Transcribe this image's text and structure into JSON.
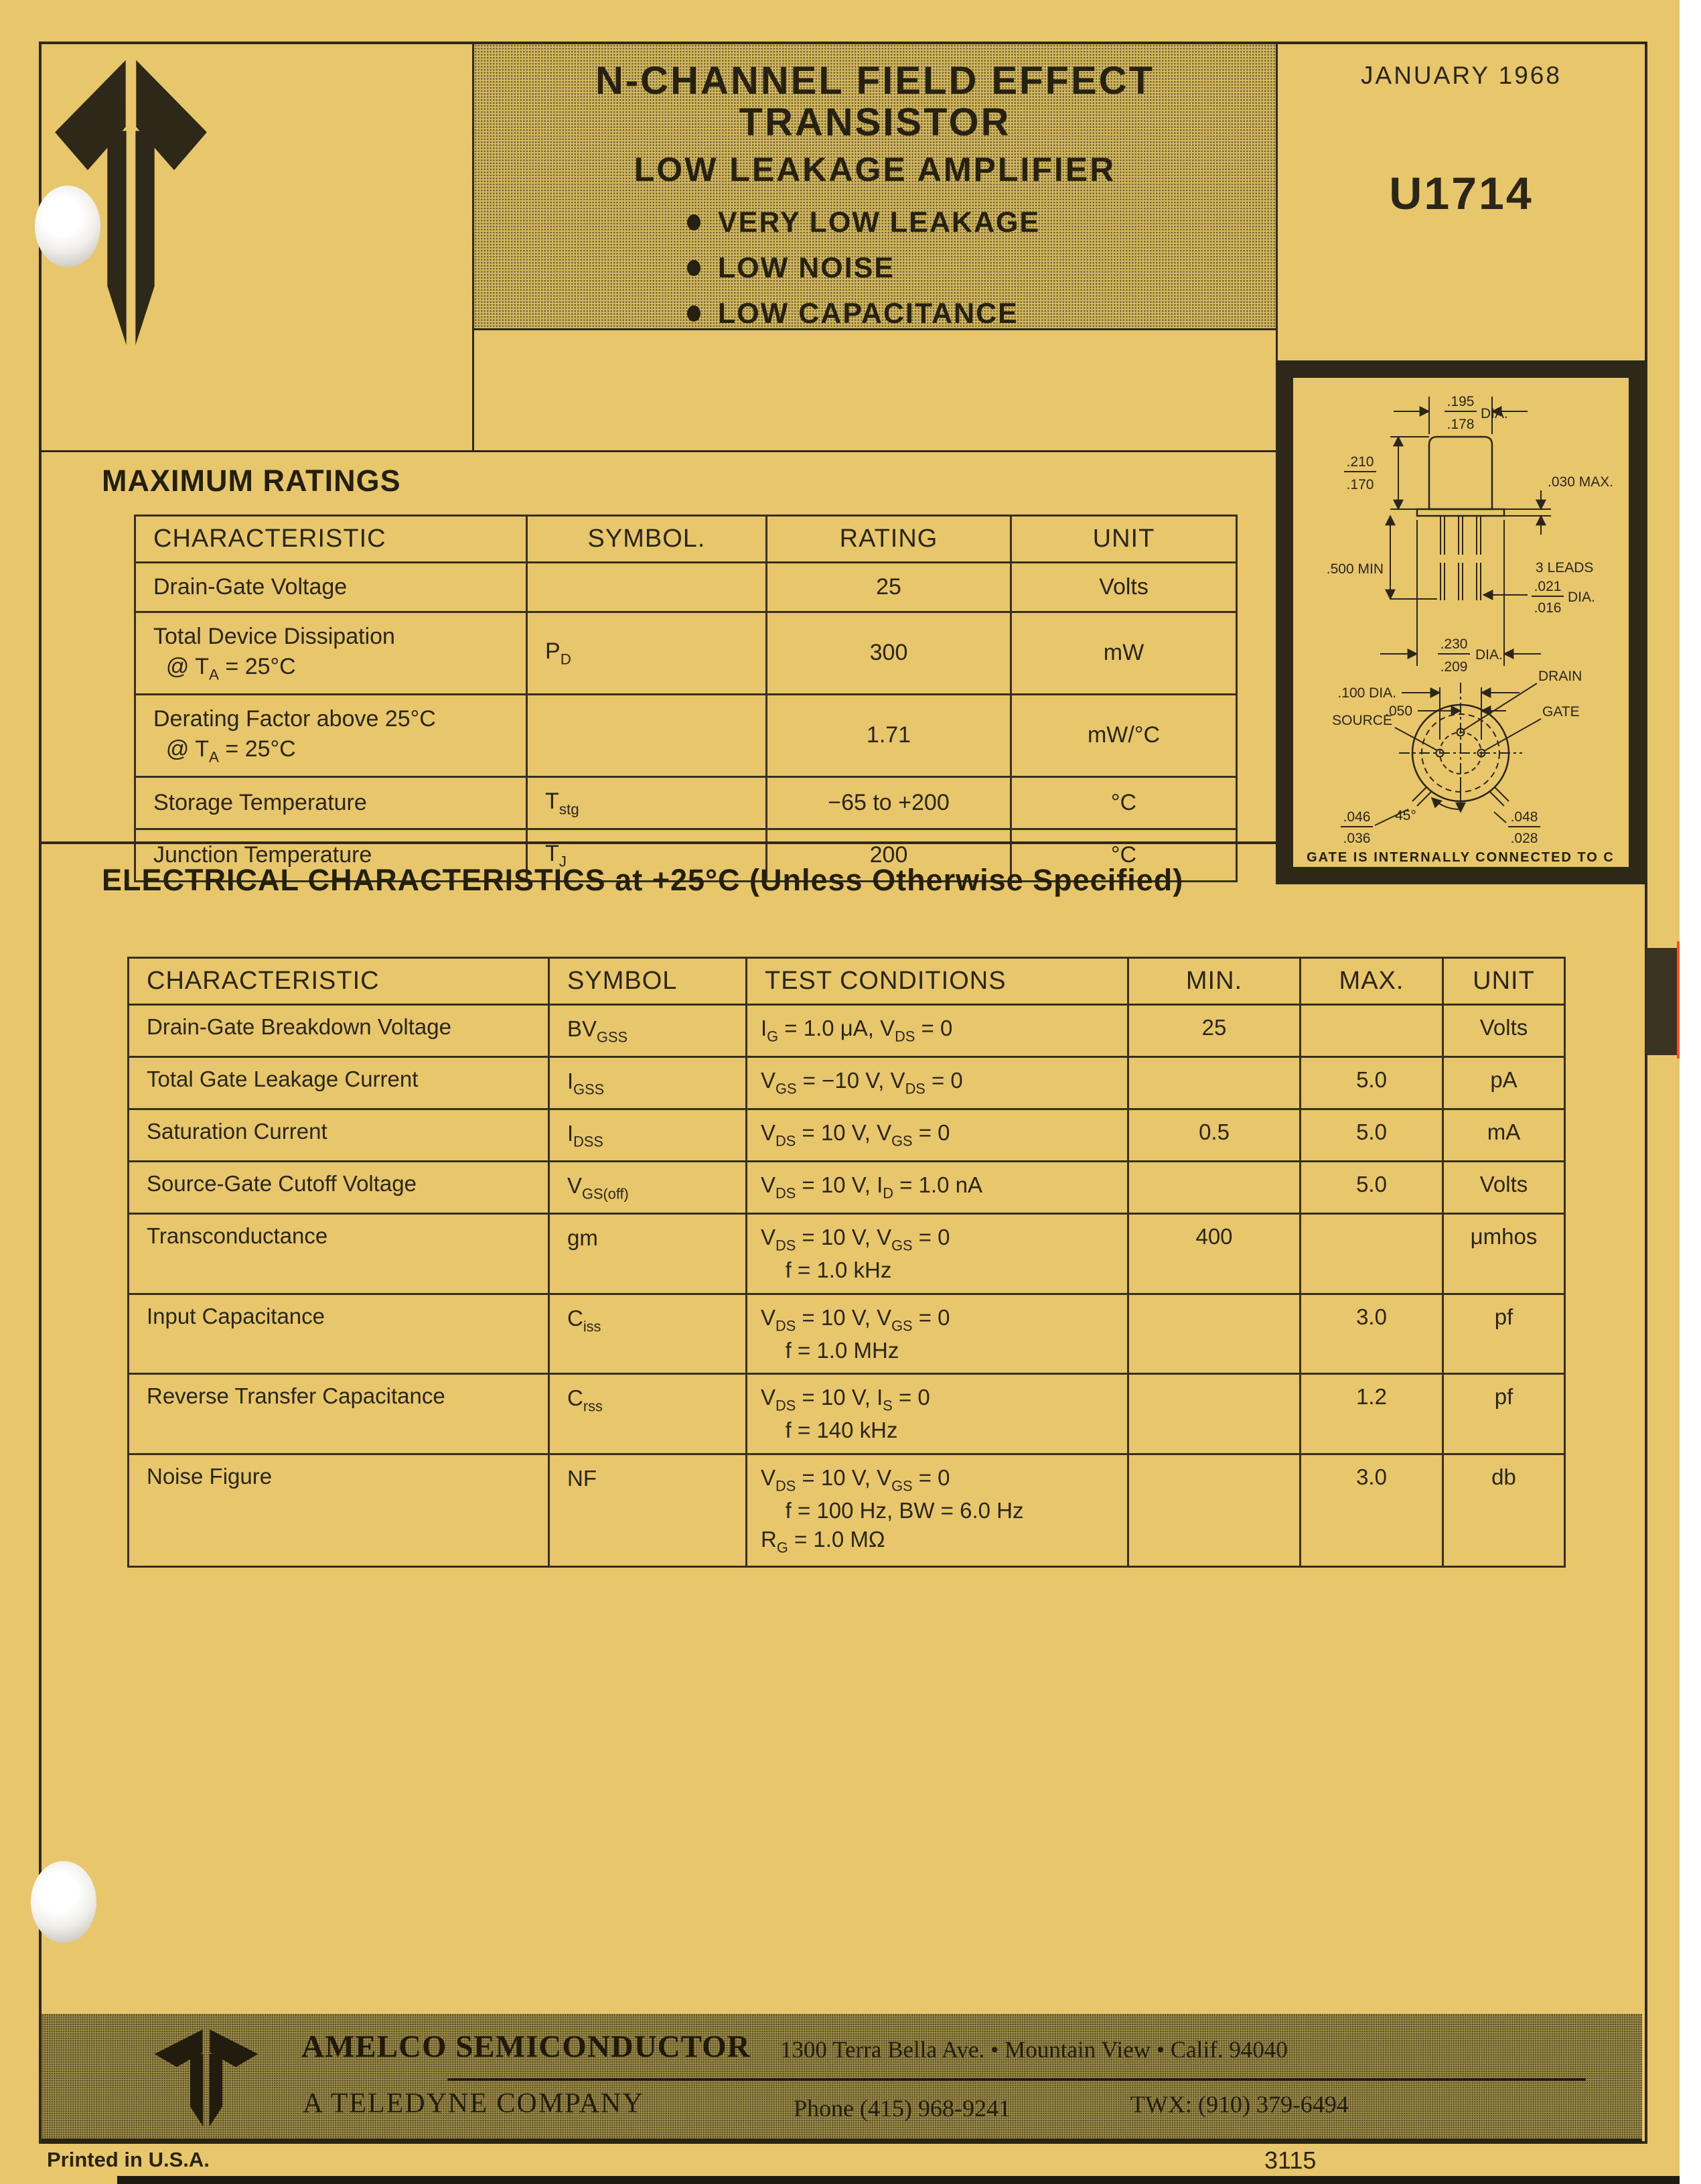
{
  "page": {
    "date": "JANUARY 1968",
    "part_number": "U1714",
    "printed_note": "Printed in U.S.A.",
    "doc_number": "3115"
  },
  "header": {
    "title_line1": "N-CHANNEL FIELD EFFECT",
    "title_line2": "TRANSISTOR",
    "subtitle": "LOW LEAKAGE AMPLIFIER",
    "bullets": [
      "VERY LOW LEAKAGE",
      "LOW NOISE",
      "LOW CAPACITANCE"
    ]
  },
  "max_ratings": {
    "heading": "MAXIMUM RATINGS",
    "columns": [
      "CHARACTERISTIC",
      "SYMBOL.",
      "RATING",
      "UNIT"
    ],
    "rows": [
      {
        "characteristic": [
          [
            {
              "t": "Drain-Gate Voltage"
            }
          ]
        ],
        "symbol": [],
        "rating": "25",
        "unit": "Volts"
      },
      {
        "characteristic": [
          [
            {
              "t": "Total Device Dissipation"
            }
          ],
          [
            {
              "t": "  @ T"
            },
            {
              "s": "A"
            },
            {
              "t": " = 25°C"
            }
          ]
        ],
        "symbol": [
          [
            {
              "t": "P"
            },
            {
              "s": "D"
            }
          ]
        ],
        "rating": "300",
        "unit": "mW"
      },
      {
        "characteristic": [
          [
            {
              "t": "Derating Factor above 25°C"
            }
          ],
          [
            {
              "t": "  @ T"
            },
            {
              "s": "A"
            },
            {
              "t": " = 25°C"
            }
          ]
        ],
        "symbol": [],
        "rating": "1.71",
        "unit": "mW/°C"
      },
      {
        "characteristic": [
          [
            {
              "t": "Storage Temperature"
            }
          ]
        ],
        "symbol": [
          [
            {
              "t": "T"
            },
            {
              "s": "stg"
            }
          ]
        ],
        "rating": "−65 to +200",
        "unit": "°C"
      },
      {
        "characteristic": [
          [
            {
              "t": "Junction Temperature"
            }
          ]
        ],
        "symbol": [
          [
            {
              "t": "T"
            },
            {
              "s": "J"
            }
          ]
        ],
        "rating": "200",
        "unit": "°C"
      }
    ]
  },
  "electrical": {
    "heading": "ELECTRICAL CHARACTERISTICS at +25°C (Unless Otherwise Specified)",
    "columns": [
      "CHARACTERISTIC",
      "SYMBOL",
      "TEST CONDITIONS",
      "MIN.",
      "MAX.",
      "UNIT"
    ],
    "rows": [
      {
        "characteristic": "Drain-Gate Breakdown Voltage",
        "symbol": [
          [
            {
              "t": "BV"
            },
            {
              "s": "GSS"
            }
          ]
        ],
        "conditions": [
          [
            {
              "t": "I"
            },
            {
              "s": "G"
            },
            {
              "t": " = 1.0 μA, V"
            },
            {
              "s": "DS"
            },
            {
              "t": " = 0"
            }
          ]
        ],
        "min": "25",
        "max": "",
        "unit": "Volts"
      },
      {
        "characteristic": "Total Gate Leakage Current",
        "symbol": [
          [
            {
              "t": "I"
            },
            {
              "s": "GSS"
            }
          ]
        ],
        "conditions": [
          [
            {
              "t": "V"
            },
            {
              "s": "GS"
            },
            {
              "t": " = −10 V, V"
            },
            {
              "s": "DS"
            },
            {
              "t": " = 0"
            }
          ]
        ],
        "min": "",
        "max": "5.0",
        "unit": "pA"
      },
      {
        "characteristic": "Saturation Current",
        "symbol": [
          [
            {
              "t": "I"
            },
            {
              "s": "DSS"
            }
          ]
        ],
        "conditions": [
          [
            {
              "t": "V"
            },
            {
              "s": "DS"
            },
            {
              "t": " = 10 V, V"
            },
            {
              "s": "GS"
            },
            {
              "t": " = 0"
            }
          ]
        ],
        "min": "0.5",
        "max": "5.0",
        "unit": "mA"
      },
      {
        "characteristic": "Source-Gate Cutoff Voltage",
        "symbol": [
          [
            {
              "t": "V"
            },
            {
              "s": "GS(off)"
            }
          ]
        ],
        "conditions": [
          [
            {
              "t": "V"
            },
            {
              "s": "DS"
            },
            {
              "t": " = 10 V, I"
            },
            {
              "s": "D"
            },
            {
              "t": " = 1.0 nA"
            }
          ]
        ],
        "min": "",
        "max": "5.0",
        "unit": "Volts"
      },
      {
        "characteristic": "Transconductance",
        "symbol": [
          [
            {
              "t": "gm"
            }
          ]
        ],
        "conditions": [
          [
            {
              "t": "V"
            },
            {
              "s": "DS"
            },
            {
              "t": " = 10 V, V"
            },
            {
              "s": "GS"
            },
            {
              "t": " = 0"
            }
          ],
          [
            {
              "t": "    f = 1.0 kHz"
            }
          ]
        ],
        "min": "400",
        "max": "",
        "unit": "μmhos"
      },
      {
        "characteristic": "Input Capacitance",
        "symbol": [
          [
            {
              "t": "C"
            },
            {
              "s": "iss"
            }
          ]
        ],
        "conditions": [
          [
            {
              "t": "V"
            },
            {
              "s": "DS"
            },
            {
              "t": " = 10 V, V"
            },
            {
              "s": "GS"
            },
            {
              "t": " = 0"
            }
          ],
          [
            {
              "t": "    f = 1.0 MHz"
            }
          ]
        ],
        "min": "",
        "max": "3.0",
        "unit": "pf"
      },
      {
        "characteristic": "Reverse Transfer Capacitance",
        "symbol": [
          [
            {
              "t": "C"
            },
            {
              "s": "rss"
            }
          ]
        ],
        "conditions": [
          [
            {
              "t": "V"
            },
            {
              "s": "DS"
            },
            {
              "t": " = 10 V, I"
            },
            {
              "s": "S"
            },
            {
              "t": " = 0"
            }
          ],
          [
            {
              "t": "    f = 140 kHz"
            }
          ]
        ],
        "min": "",
        "max": "1.2",
        "unit": "pf"
      },
      {
        "characteristic": "Noise Figure",
        "symbol": [
          [
            {
              "t": "NF"
            }
          ]
        ],
        "conditions": [
          [
            {
              "t": "V"
            },
            {
              "s": "DS"
            },
            {
              "t": " = 10 V, V"
            },
            {
              "s": "GS"
            },
            {
              "t": " = 0"
            }
          ],
          [
            {
              "t": "    f = 100 Hz, BW = 6.0 Hz"
            }
          ],
          [
            {
              "t": "R"
            },
            {
              "s": "G"
            },
            {
              "t": " = 1.0 MΩ"
            }
          ]
        ],
        "min": "",
        "max": "3.0",
        "unit": "db"
      }
    ]
  },
  "package": {
    "dia_top_num": ".195",
    "dia_top_den": ".178",
    "dia_top_suffix": "DIA.",
    "height_num": ".210",
    "height_den": ".170",
    "standoff": ".030 MAX.",
    "lead_length": ".500 MIN",
    "leads_label": "3 LEADS",
    "lead_dia_num": ".021",
    "lead_dia_den": ".016",
    "lead_dia_suffix": "DIA.",
    "flange_num": ".230",
    "flange_den": ".209",
    "flange_suffix": "DIA.",
    "pin_circle": ".100 DIA.",
    "pin_pitch": ".050",
    "angle": "45°",
    "tab_left_num": ".046",
    "tab_left_den": ".036",
    "tab_right_num": ".048",
    "tab_right_den": ".028",
    "pin_source": "SOURCE",
    "pin_drain": "DRAIN",
    "pin_gate": "GATE",
    "note": "GATE IS INTERNALLY CONNECTED TO C"
  },
  "footer": {
    "company": "AMELCO SEMICONDUCTOR",
    "address": "1300 Terra Bella Ave. • Mountain View • Calif. 94040",
    "tagline": "A TELEDYNE COMPANY",
    "phone": "Phone (415) 968-9241",
    "twx": "TWX: (910) 379-6494"
  },
  "colors": {
    "paper": "#e8c66b",
    "ink": "#2b261a",
    "halftone_bg": "#d2b75e",
    "footer_bg": "#a3914b",
    "scan_edge_red": "#f4502a"
  }
}
